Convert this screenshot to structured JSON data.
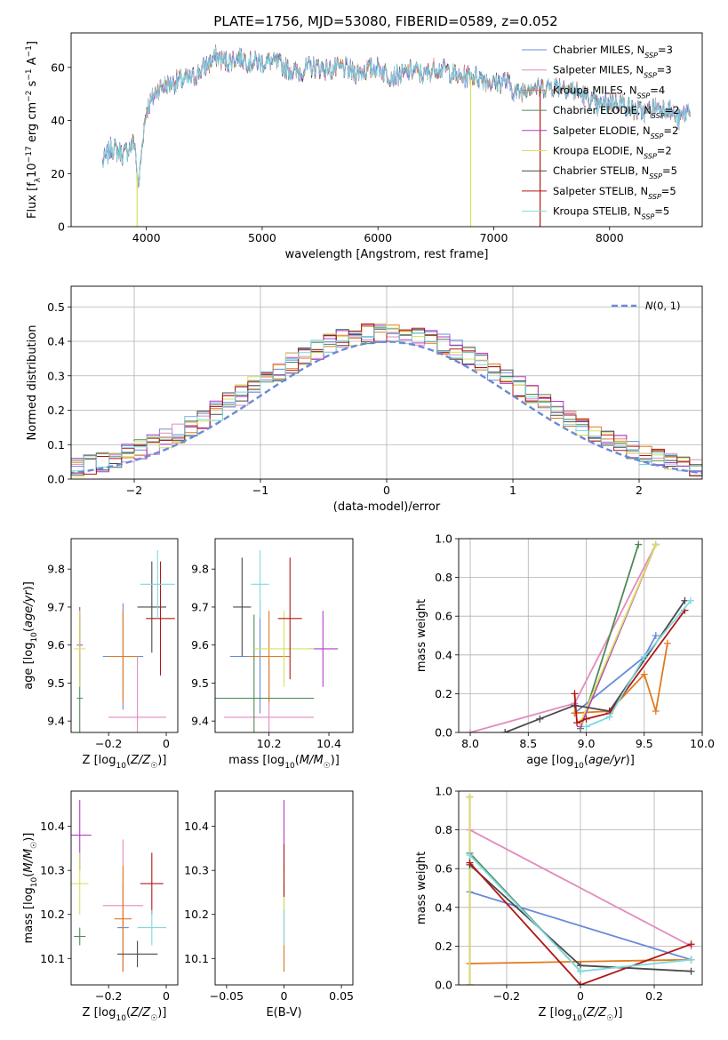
{
  "title": "PLATE=1756, MJD=53080, FIBERID=0589, z=0.052",
  "colors": {
    "Chabrier MILES": "#6a8ad8",
    "Salpeter MILES": "#e38bbd",
    "Kroupa MILES": "#e07b1f",
    "Chabrier ELODIE": "#4f8a56",
    "Salpeter ELODIE": "#b33cc6",
    "Kroupa ELODIE": "#d7e060",
    "Chabrier STELIB": "#4a4a4a",
    "Salpeter STELIB": "#b01818",
    "Kroupa STELIB": "#7fd8e0",
    "gauss": "#6a8ad8"
  },
  "chart_data": [
    {
      "id": "spectrum",
      "type": "line",
      "xlabel": "wavelength [Angstrom, rest frame]",
      "ylabel": "Flux [fλ10⁻¹⁷ erg cm⁻² s⁻¹ A⁻¹]",
      "xlim": [
        3350,
        8800
      ],
      "ylim": [
        0,
        73
      ],
      "xticks": [
        4000,
        5000,
        6000,
        7000,
        8000
      ],
      "yticks": [
        0,
        20,
        40,
        60
      ],
      "grid": false,
      "legend_position": "top-right",
      "legend": [
        {
          "name": "Chabrier MILES",
          "nssp": "3"
        },
        {
          "name": "Salpeter MILES",
          "nssp": "3"
        },
        {
          "name": "Kroupa MILES",
          "nssp": "4"
        },
        {
          "name": "Chabrier ELODIE",
          "nssp": "2"
        },
        {
          "name": "Salpeter ELODIE",
          "nssp": "2"
        },
        {
          "name": "Kroupa ELODIE",
          "nssp": "2"
        },
        {
          "name": "Chabrier STELIB",
          "nssp": "5"
        },
        {
          "name": "Salpeter STELIB",
          "nssp": "5"
        },
        {
          "name": "Kroupa STELIB",
          "nssp": "5"
        }
      ],
      "envelope": [
        [
          3620,
          24
        ],
        [
          3700,
          30
        ],
        [
          3800,
          27
        ],
        [
          3900,
          32
        ],
        [
          3930,
          14
        ],
        [
          3970,
          34
        ],
        [
          4000,
          44
        ],
        [
          4100,
          52
        ],
        [
          4200,
          54
        ],
        [
          4300,
          55
        ],
        [
          4400,
          56
        ],
        [
          4500,
          60
        ],
        [
          4600,
          64
        ],
        [
          4700,
          62
        ],
        [
          4800,
          64
        ],
        [
          4900,
          62
        ],
        [
          5000,
          62
        ],
        [
          5100,
          62
        ],
        [
          5200,
          60
        ],
        [
          5300,
          58
        ],
        [
          5400,
          60
        ],
        [
          5500,
          60
        ],
        [
          5600,
          59
        ],
        [
          5700,
          60
        ],
        [
          5800,
          58
        ],
        [
          5900,
          59
        ],
        [
          6000,
          60
        ],
        [
          6100,
          57
        ],
        [
          6200,
          57
        ],
        [
          6300,
          59
        ],
        [
          6400,
          57
        ],
        [
          6500,
          60
        ],
        [
          6600,
          59
        ],
        [
          6700,
          56
        ],
        [
          6800,
          57
        ],
        [
          6900,
          56
        ],
        [
          7000,
          54
        ],
        [
          7100,
          55
        ],
        [
          7200,
          50
        ],
        [
          7300,
          53
        ],
        [
          7400,
          52
        ],
        [
          7500,
          53
        ],
        [
          7600,
          53
        ],
        [
          7700,
          51
        ],
        [
          7800,
          49
        ],
        [
          7900,
          45
        ],
        [
          8000,
          47
        ],
        [
          8100,
          47
        ],
        [
          8200,
          44
        ],
        [
          8300,
          43
        ],
        [
          8400,
          45
        ],
        [
          8500,
          45
        ],
        [
          8600,
          40
        ],
        [
          8700,
          45
        ]
      ],
      "dropouts": [
        {
          "x": 3920,
          "series": "Kroupa ELODIE"
        },
        {
          "x": 6800,
          "series": "Kroupa ELODIE"
        },
        {
          "x": 7400,
          "series": "Salpeter STELIB"
        }
      ]
    },
    {
      "id": "residual-hist",
      "type": "bar",
      "xlabel": "(data-model)/error",
      "ylabel": "Normed distribution",
      "xlim": [
        -2.5,
        2.5
      ],
      "ylim": [
        0,
        0.56
      ],
      "xticks": [
        -2,
        -1,
        0,
        1,
        2
      ],
      "yticks": [
        0.0,
        0.1,
        0.2,
        0.3,
        0.4,
        0.5
      ],
      "grid": true,
      "legend_position": "top-right",
      "legend": [
        {
          "name": "N(0,1)",
          "style": "dashed"
        }
      ],
      "bin_width": 0.1
    },
    {
      "id": "age-vs-Z",
      "type": "scatter",
      "xlabel": "Z [log10(Z/Z☉)]",
      "ylabel": "age [log10(age/yr)]",
      "xlim": [
        -0.33,
        0.04
      ],
      "ylim": [
        9.37,
        9.88
      ],
      "xticks": [
        -0.2,
        0.0
      ],
      "yticks": [
        9.4,
        9.5,
        9.6,
        9.7,
        9.8
      ],
      "points": [
        {
          "s": "Chabrier MILES",
          "x": -0.15,
          "xe": 0.07,
          "y": 9.57,
          "ye": 0.14
        },
        {
          "s": "Salpeter MILES",
          "x": -0.1,
          "xe": 0.1,
          "y": 9.41,
          "ye": 0.16
        },
        {
          "s": "Kroupa MILES",
          "x": -0.15,
          "xe": 0.05,
          "y": 9.57,
          "ye": 0.12
        },
        {
          "s": "Chabrier ELODIE",
          "x": -0.3,
          "xe": 0.01,
          "y": 9.46,
          "ye": 0.22
        },
        {
          "s": "Salpeter ELODIE",
          "x": -0.3,
          "xe": 0.01,
          "y": 9.6,
          "ye": 0.1
        },
        {
          "s": "Kroupa ELODIE",
          "x": -0.3,
          "xe": 0.02,
          "y": 9.59,
          "ye": 0.1
        },
        {
          "s": "Chabrier STELIB",
          "x": -0.05,
          "xe": 0.05,
          "y": 9.7,
          "ye": 0.12
        },
        {
          "s": "Salpeter STELIB",
          "x": -0.02,
          "xe": 0.05,
          "y": 9.67,
          "ye": 0.15
        },
        {
          "s": "Kroupa STELIB",
          "x": -0.03,
          "xe": 0.06,
          "y": 9.76,
          "ye": 0.09
        }
      ]
    },
    {
      "id": "age-vs-mass",
      "type": "scatter",
      "xlabel": "mass [log10(M/M☉)]",
      "ylabel": "",
      "xlim": [
        10.02,
        10.48
      ],
      "ylim": [
        9.37,
        9.88
      ],
      "xticks": [
        10.2,
        10.4
      ],
      "yticks": [
        9.4,
        9.5,
        9.6,
        9.7,
        9.8
      ],
      "points": [
        {
          "s": "Chabrier MILES",
          "x": 10.17,
          "xe": 0.1,
          "y": 9.57,
          "ye": 0.15
        },
        {
          "s": "Salpeter MILES",
          "x": 10.2,
          "xe": 0.15,
          "y": 9.41,
          "ye": 0.15
        },
        {
          "s": "Kroupa MILES",
          "x": 10.2,
          "xe": 0.07,
          "y": 9.57,
          "ye": 0.12
        },
        {
          "s": "Chabrier ELODIE",
          "x": 10.15,
          "xe": 0.2,
          "y": 9.46,
          "ye": 0.22
        },
        {
          "s": "Salpeter ELODIE",
          "x": 10.38,
          "xe": 0.05,
          "y": 9.59,
          "ye": 0.1
        },
        {
          "s": "Kroupa ELODIE",
          "x": 10.25,
          "xe": 0.1,
          "y": 9.59,
          "ye": 0.1
        },
        {
          "s": "Chabrier STELIB",
          "x": 10.11,
          "xe": 0.03,
          "y": 9.7,
          "ye": 0.13
        },
        {
          "s": "Salpeter STELIB",
          "x": 10.27,
          "xe": 0.04,
          "y": 9.67,
          "ye": 0.16
        },
        {
          "s": "Kroupa STELIB",
          "x": 10.17,
          "xe": 0.03,
          "y": 9.76,
          "ye": 0.09
        }
      ]
    },
    {
      "id": "weight-vs-age",
      "type": "line",
      "xlabel": "age [log10(age/yr)]",
      "ylabel": "mass weight",
      "xlim": [
        7.9,
        10.0
      ],
      "ylim": [
        0,
        1.0
      ],
      "xticks": [
        8.0,
        8.5,
        9.0,
        9.5,
        10.0
      ],
      "yticks": [
        0.0,
        0.2,
        0.4,
        0.6,
        0.8,
        1.0
      ],
      "grid": true,
      "series": [
        {
          "s": "Chabrier MILES",
          "x": [
            8.9,
            9.5,
            9.6
          ],
          "y": [
            0.1,
            0.39,
            0.5
          ]
        },
        {
          "s": "Salpeter MILES",
          "x": [
            8.0,
            8.9,
            9.6
          ],
          "y": [
            0.0,
            0.15,
            0.97
          ]
        },
        {
          "s": "Kroupa MILES",
          "x": [
            8.9,
            9.2,
            9.5,
            9.6,
            9.7
          ],
          "y": [
            0.1,
            0.11,
            0.3,
            0.11,
            0.46
          ]
        },
        {
          "s": "Chabrier ELODIE",
          "x": [
            8.95,
            9.45
          ],
          "y": [
            0.02,
            0.97
          ]
        },
        {
          "s": "Salpeter ELODIE",
          "x": [
            8.95,
            9.6
          ],
          "y": [
            0.03,
            0.97
          ]
        },
        {
          "s": "Kroupa ELODIE",
          "x": [
            8.95,
            9.6
          ],
          "y": [
            0.05,
            0.97
          ]
        },
        {
          "s": "Chabrier STELIB",
          "x": [
            8.3,
            8.6,
            8.9,
            9.2,
            9.85
          ],
          "y": [
            0.0,
            0.07,
            0.14,
            0.11,
            0.68
          ]
        },
        {
          "s": "Salpeter STELIB",
          "x": [
            8.9,
            8.92,
            9.0,
            9.2,
            9.85
          ],
          "y": [
            0.2,
            0.05,
            0.07,
            0.1,
            0.63
          ]
        },
        {
          "s": "Kroupa STELIB",
          "x": [
            9.0,
            9.2,
            9.5,
            9.9
          ],
          "y": [
            0.03,
            0.08,
            0.39,
            0.68
          ]
        }
      ]
    },
    {
      "id": "mass-vs-Z",
      "type": "scatter",
      "xlabel": "Z [log10(Z/Z☉)]",
      "ylabel": "mass [log10(M/M☉)]",
      "xlim": [
        -0.33,
        0.04
      ],
      "ylim": [
        10.04,
        10.48
      ],
      "xticks": [
        -0.2,
        0.0
      ],
      "yticks": [
        10.1,
        10.2,
        10.3,
        10.4
      ],
      "points": [
        {
          "s": "Chabrier MILES",
          "x": -0.15,
          "xe": 0.02,
          "y": 10.17,
          "ye": 0.1
        },
        {
          "s": "Salpeter MILES",
          "x": -0.15,
          "xe": 0.07,
          "y": 10.22,
          "ye": 0.15
        },
        {
          "s": "Kroupa MILES",
          "x": -0.15,
          "xe": 0.03,
          "y": 10.19,
          "ye": 0.12
        },
        {
          "s": "Chabrier ELODIE",
          "x": -0.3,
          "xe": 0.02,
          "y": 10.15,
          "ye": 0.02
        },
        {
          "s": "Salpeter ELODIE",
          "x": -0.3,
          "xe": 0.04,
          "y": 10.38,
          "ye": 0.08
        },
        {
          "s": "Kroupa ELODIE",
          "x": -0.3,
          "xe": 0.03,
          "y": 10.27,
          "ye": 0.07
        },
        {
          "s": "Chabrier STELIB",
          "x": -0.1,
          "xe": 0.07,
          "y": 10.11,
          "ye": 0.03
        },
        {
          "s": "Salpeter STELIB",
          "x": -0.05,
          "xe": 0.04,
          "y": 10.27,
          "ye": 0.07
        },
        {
          "s": "Kroupa STELIB",
          "x": -0.05,
          "xe": 0.05,
          "y": 10.17,
          "ye": 0.04
        }
      ]
    },
    {
      "id": "mass-vs-EBV",
      "type": "scatter",
      "xlabel": "E(B-V)",
      "ylabel": "",
      "xlim": [
        -0.06,
        0.06
      ],
      "ylim": [
        10.04,
        10.48
      ],
      "xticks": [
        -0.05,
        0.0,
        0.05
      ],
      "yticks": [
        10.1,
        10.2,
        10.3,
        10.4
      ],
      "points": [
        {
          "s": "Chabrier MILES",
          "x": 0,
          "xe": 0,
          "y": 10.17,
          "ye": 0.1
        },
        {
          "s": "Kroupa MILES",
          "x": 0,
          "xe": 0,
          "y": 10.19,
          "ye": 0.12
        },
        {
          "s": "Salpeter ELODIE",
          "x": 0,
          "xe": 0,
          "y": 10.38,
          "ye": 0.08
        },
        {
          "s": "Kroupa ELODIE",
          "x": 0,
          "xe": 0,
          "y": 10.27,
          "ye": 0.07
        },
        {
          "s": "Salpeter STELIB",
          "x": 0,
          "xe": 0,
          "y": 10.3,
          "ye": 0.06
        },
        {
          "s": "Kroupa STELIB",
          "x": 0,
          "xe": 0,
          "y": 10.17,
          "ye": 0.04
        }
      ]
    },
    {
      "id": "weight-vs-Z",
      "type": "line",
      "xlabel": "Z [log10(Z/Z☉)]",
      "ylabel": "mass weight",
      "xlim": [
        -0.33,
        0.33
      ],
      "ylim": [
        0,
        1.0
      ],
      "xticks": [
        -0.2,
        0.0,
        0.2
      ],
      "yticks": [
        0.0,
        0.2,
        0.4,
        0.6,
        0.8,
        1.0
      ],
      "grid": true,
      "series": [
        {
          "s": "Chabrier MILES",
          "x": [
            -0.3,
            0.3
          ],
          "y": [
            0.48,
            0.13
          ]
        },
        {
          "s": "Salpeter MILES",
          "x": [
            -0.3,
            0.3
          ],
          "y": [
            0.8,
            0.2
          ]
        },
        {
          "s": "Kroupa MILES",
          "x": [
            -0.3,
            0.3
          ],
          "y": [
            0.11,
            0.13
          ]
        },
        {
          "s": "Chabrier ELODIE",
          "x": [
            -0.3,
            0.0
          ],
          "y": [
            0.68,
            0.07
          ]
        },
        {
          "s": "Salpeter ELODIE",
          "x": [
            -0.3,
            -0.3
          ],
          "y": [
            0.0,
            0.97
          ]
        },
        {
          "s": "Kroupa ELODIE",
          "x": [
            -0.3,
            -0.3
          ],
          "y": [
            0.0,
            0.97
          ]
        },
        {
          "s": "Chabrier STELIB",
          "x": [
            -0.3,
            0.0,
            0.3
          ],
          "y": [
            0.62,
            0.1,
            0.07
          ]
        },
        {
          "s": "Salpeter STELIB",
          "x": [
            -0.3,
            0.0,
            0.3
          ],
          "y": [
            0.63,
            0.0,
            0.21
          ]
        },
        {
          "s": "Kroupa STELIB",
          "x": [
            -0.3,
            0.0,
            0.3
          ],
          "y": [
            0.67,
            0.07,
            0.13
          ]
        }
      ]
    }
  ]
}
